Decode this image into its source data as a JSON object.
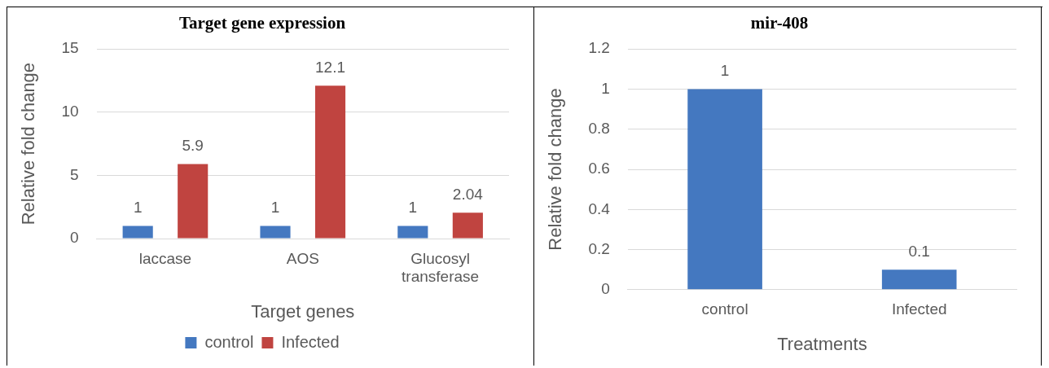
{
  "chart_data": [
    {
      "type": "bar",
      "title": "Target gene expression",
      "xlabel": "Target genes",
      "ylabel": "Relative fold change",
      "categories": [
        "laccase",
        "AOS",
        [
          "Glucosyl",
          "transferase"
        ]
      ],
      "series": [
        {
          "name": "control",
          "color": "#4478c0",
          "values": [
            1,
            1,
            1
          ]
        },
        {
          "name": "Infected",
          "color": "#c04440",
          "values": [
            5.9,
            12.1,
            2.04
          ]
        }
      ],
      "ylim": [
        0,
        15
      ],
      "yticks": [
        0,
        5,
        10,
        15
      ],
      "grid": "y",
      "legend": "bottom",
      "data_labels": true
    },
    {
      "type": "bar",
      "title": "mir-408",
      "xlabel": "Treatments",
      "ylabel": "Relative fold change",
      "categories": [
        "control",
        "Infected"
      ],
      "series": [
        {
          "color": "#4478c0",
          "values": [
            1,
            0.1
          ]
        }
      ],
      "ylim": [
        0,
        1.2
      ],
      "yticks": [
        0,
        0.2,
        0.4,
        0.6,
        0.8,
        1,
        1.2
      ],
      "grid": "y",
      "legend": false,
      "data_labels": true
    }
  ]
}
